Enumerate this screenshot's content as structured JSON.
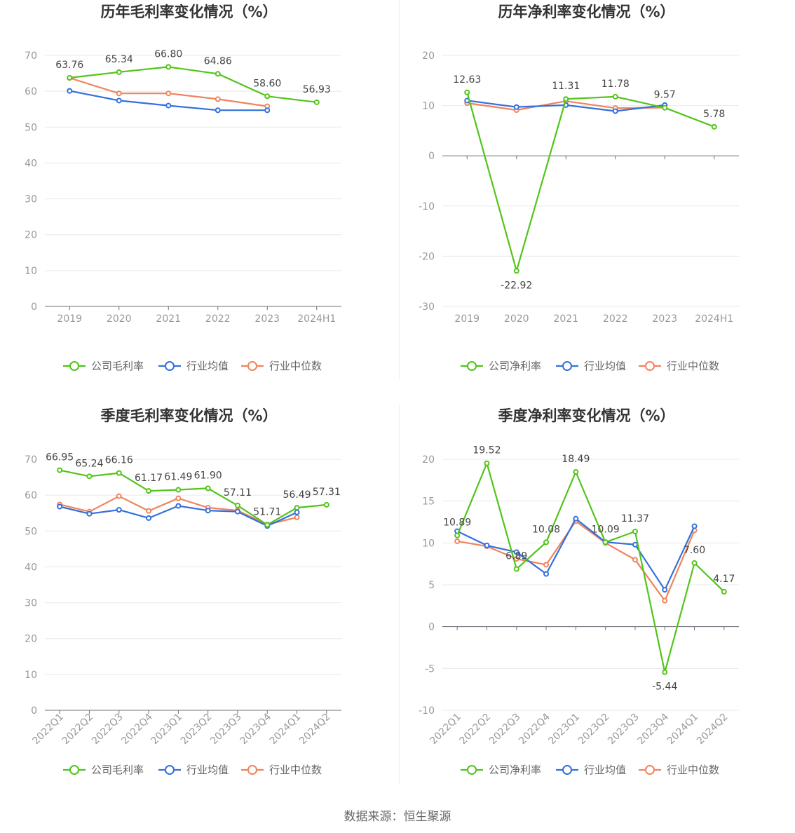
{
  "source": "数据来源：恒生聚源",
  "colors": {
    "company": "#52c41a",
    "avg": "#3470db",
    "median": "#f0845c"
  },
  "chart_data": [
    {
      "type": "line",
      "title": "历年毛利率变化情况（%）",
      "categories": [
        "2019",
        "2020",
        "2021",
        "2022",
        "2023",
        "2024H1"
      ],
      "ylim": [
        0,
        70
      ],
      "yticks": [
        0,
        10,
        20,
        30,
        40,
        50,
        60,
        70
      ],
      "legend_position": "bottom",
      "series": [
        {
          "name": "公司毛利率",
          "key": "company",
          "values": [
            63.76,
            65.34,
            66.8,
            64.86,
            58.6,
            56.93
          ],
          "labels": [
            "63.76",
            "65.34",
            "66.80",
            "64.86",
            "58.60",
            "56.93"
          ]
        },
        {
          "name": "行业均值",
          "key": "avg",
          "values": [
            60.1,
            57.4,
            56.0,
            54.7,
            54.7,
            null
          ]
        },
        {
          "name": "行业中位数",
          "key": "median",
          "values": [
            63.7,
            59.4,
            59.4,
            57.8,
            55.8,
            null
          ]
        }
      ]
    },
    {
      "type": "line",
      "title": "历年净利率变化情况（%）",
      "categories": [
        "2019",
        "2020",
        "2021",
        "2022",
        "2023",
        "2024H1"
      ],
      "ylim": [
        -30,
        20
      ],
      "yticks": [
        -30,
        -20,
        -10,
        0,
        10,
        20
      ],
      "legend_position": "bottom",
      "series": [
        {
          "name": "公司净利率",
          "key": "company",
          "values": [
            12.63,
            -22.92,
            11.31,
            11.78,
            9.57,
            5.78
          ],
          "labels": [
            "12.63",
            "-22.92",
            "11.31",
            "11.78",
            "9.57",
            "5.78"
          ]
        },
        {
          "name": "行业均值",
          "key": "avg",
          "values": [
            11.0,
            9.7,
            10.1,
            8.9,
            10.1,
            null
          ]
        },
        {
          "name": "行业中位数",
          "key": "median",
          "values": [
            10.5,
            9.1,
            10.9,
            9.5,
            9.6,
            null
          ]
        }
      ]
    },
    {
      "type": "line",
      "title": "季度毛利率变化情况（%）",
      "categories": [
        "2022Q1",
        "2022Q2",
        "2022Q3",
        "2022Q4",
        "2023Q1",
        "2023Q2",
        "2023Q3",
        "2023Q4",
        "2024Q1",
        "2024Q2"
      ],
      "ylim": [
        0,
        70
      ],
      "yticks": [
        0,
        10,
        20,
        30,
        40,
        50,
        60,
        70
      ],
      "legend_position": "bottom",
      "series": [
        {
          "name": "公司毛利率",
          "key": "company",
          "values": [
            66.95,
            65.24,
            66.16,
            61.17,
            61.49,
            61.9,
            57.11,
            51.71,
            56.49,
            57.31
          ],
          "labels": [
            "66.95",
            "65.24",
            "66.16",
            "61.17",
            "61.49",
            "61.90",
            "57.11",
            "51.71",
            "56.49",
            "57.31"
          ]
        },
        {
          "name": "行业均值",
          "key": "avg",
          "values": [
            56.8,
            54.8,
            55.9,
            53.6,
            57.0,
            55.7,
            55.4,
            51.4,
            55.2,
            null
          ]
        },
        {
          "name": "行业中位数",
          "key": "median",
          "values": [
            57.4,
            55.4,
            59.7,
            55.6,
            59.1,
            56.5,
            55.7,
            51.8,
            53.8,
            null
          ]
        }
      ]
    },
    {
      "type": "line",
      "title": "季度净利率变化情况（%）",
      "categories": [
        "2022Q1",
        "2022Q2",
        "2022Q3",
        "2022Q4",
        "2023Q1",
        "2023Q2",
        "2023Q3",
        "2023Q4",
        "2024Q1",
        "2024Q2"
      ],
      "ylim": [
        -10,
        20
      ],
      "yticks": [
        -10,
        -5,
        0,
        5,
        10,
        15,
        20
      ],
      "legend_position": "bottom",
      "series": [
        {
          "name": "公司净利率",
          "key": "company",
          "values": [
            10.89,
            19.52,
            6.89,
            10.08,
            18.49,
            10.09,
            11.37,
            -5.44,
            7.6,
            4.17
          ],
          "labels": [
            "10.89",
            "19.52",
            "6.89",
            "10.08",
            "18.49",
            "10.09",
            "11.37",
            "-5.44",
            "7.60",
            "4.17"
          ]
        },
        {
          "name": "行业均值",
          "key": "avg",
          "values": [
            11.4,
            9.7,
            8.9,
            6.3,
            12.9,
            10.1,
            9.8,
            4.4,
            12.0,
            null
          ]
        },
        {
          "name": "行业中位数",
          "key": "median",
          "values": [
            10.2,
            9.6,
            8.1,
            7.4,
            12.6,
            10.0,
            8.0,
            3.1,
            11.5,
            null
          ]
        }
      ]
    }
  ]
}
